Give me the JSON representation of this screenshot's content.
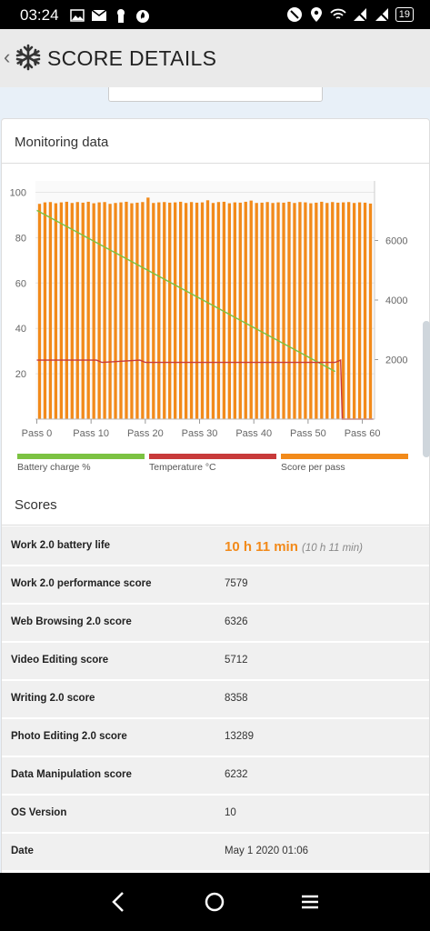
{
  "status_bar": {
    "time": "03:24",
    "battery": "19"
  },
  "app_bar": {
    "back_glyph": "‹",
    "title": "SCORE DETAILS",
    "logo_icon": "snowflake-icon"
  },
  "monitoring": {
    "title": "Monitoring data"
  },
  "chart_data": {
    "type": "bar",
    "title": "",
    "x_tick_labels": [
      "Pass 0",
      "Pass 10",
      "Pass 20",
      "Pass 30",
      "Pass 40",
      "Pass 50",
      "Pass 60"
    ],
    "left_axis": {
      "ticks": [
        "20",
        "40",
        "60",
        "80",
        "100"
      ],
      "ylim": [
        0,
        105
      ]
    },
    "right_axis": {
      "ticks": [
        "2000",
        "4000",
        "6000"
      ],
      "ylim": [
        0,
        8000
      ]
    },
    "series": [
      {
        "name": "Score per pass",
        "type": "bar",
        "axis": "right",
        "color": "#f28a1a",
        "passes": 62,
        "values": [
          7230,
          7280,
          7290,
          7250,
          7280,
          7300,
          7260,
          7290,
          7270,
          7300,
          7250,
          7280,
          7290,
          7230,
          7260,
          7280,
          7300,
          7250,
          7270,
          7290,
          7440,
          7260,
          7280,
          7290,
          7270,
          7280,
          7300,
          7260,
          7290,
          7270,
          7280,
          7350,
          7260,
          7290,
          7300,
          7250,
          7280,
          7270,
          7300,
          7340,
          7260,
          7270,
          7290,
          7260,
          7280,
          7270,
          7300,
          7260,
          7290,
          7280,
          7250,
          7270,
          7300,
          7260,
          7290,
          7270,
          7280,
          7290,
          7260,
          7280,
          7270,
          7240
        ]
      },
      {
        "name": "Battery charge %",
        "type": "line",
        "axis": "left",
        "color": "#7cc242",
        "x": [
          0,
          55
        ],
        "y": [
          92,
          21
        ]
      },
      {
        "name": "Temperature °C",
        "type": "line",
        "axis": "left",
        "color": "#c83a3a",
        "x": [
          0,
          11,
          12,
          19,
          20,
          55,
          56,
          56.3,
          62
        ],
        "y": [
          26,
          26,
          25,
          26,
          25,
          25,
          26,
          0,
          0
        ]
      }
    ],
    "grid": true
  },
  "legend": [
    {
      "label": "Battery charge %",
      "color": "#7cc242"
    },
    {
      "label": "Temperature °C",
      "color": "#c83a3a"
    },
    {
      "label": "Score per pass",
      "color": "#f28a1a"
    }
  ],
  "scores": {
    "title": "Scores",
    "rows": [
      {
        "label": "Work 2.0 battery life",
        "value": "10 h 11 min",
        "sub": "(10 h 11 min)"
      },
      {
        "label": "Work 2.0 performance score",
        "value": "7579"
      },
      {
        "label": "Web Browsing 2.0 score",
        "value": "6326"
      },
      {
        "label": "Video Editing score",
        "value": "5712"
      },
      {
        "label": "Writing 2.0 score",
        "value": "8358"
      },
      {
        "label": "Photo Editing 2.0 score",
        "value": "13289"
      },
      {
        "label": "Data Manipulation score",
        "value": "6232"
      },
      {
        "label": "OS Version",
        "value": "10"
      },
      {
        "label": "Date",
        "value": "May 1 2020 01:06"
      }
    ]
  }
}
